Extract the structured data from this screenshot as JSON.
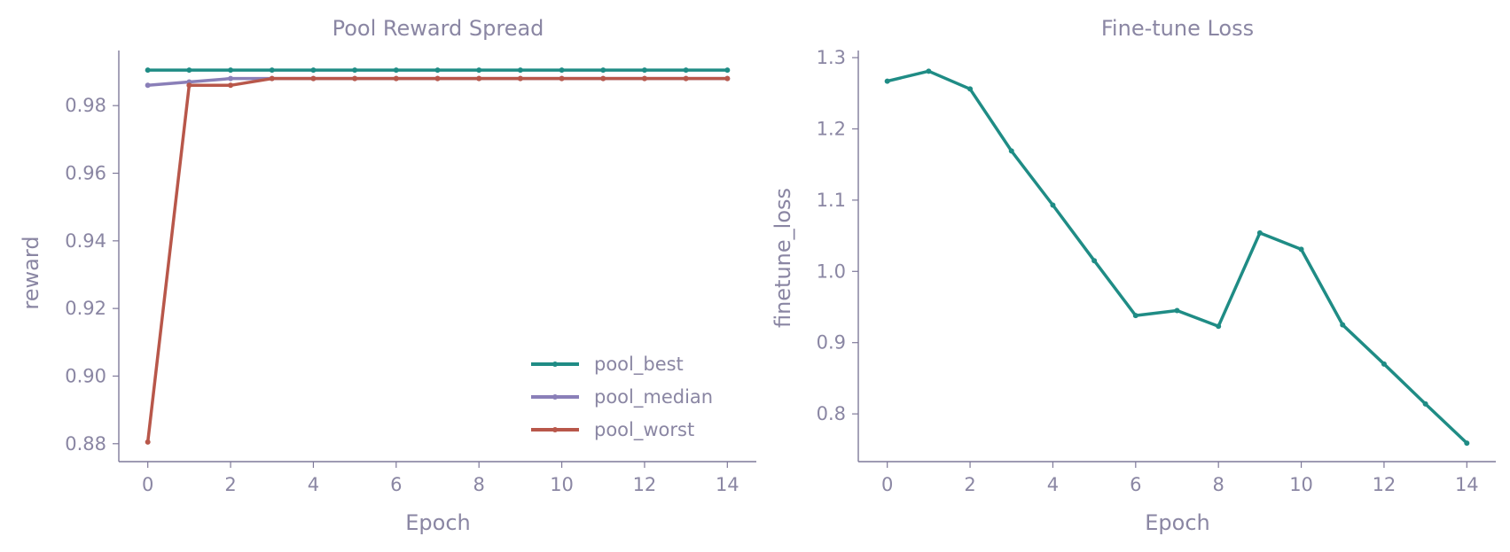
{
  "chart_data": [
    {
      "type": "line",
      "title": "Pool Reward Spread",
      "xlabel": "Epoch",
      "ylabel": "reward",
      "x": [
        0,
        1,
        2,
        3,
        4,
        5,
        6,
        7,
        8,
        9,
        10,
        11,
        12,
        13,
        14
      ],
      "xlim": [
        -0.7,
        14.7
      ],
      "ylim": [
        0.8747,
        0.9963
      ],
      "xticks": [
        0,
        2,
        4,
        6,
        8,
        10,
        12,
        14
      ],
      "yticks": [
        0.88,
        0.9,
        0.92,
        0.94,
        0.96,
        0.98
      ],
      "ytick_labels": [
        "0.88",
        "0.90",
        "0.92",
        "0.94",
        "0.96",
        "0.98"
      ],
      "grid": false,
      "legend_position": "lower-right",
      "series": [
        {
          "name": "pool_best",
          "color": "#1f8c85",
          "values": [
            0.9905,
            0.9905,
            0.9905,
            0.9905,
            0.9905,
            0.9905,
            0.9905,
            0.9905,
            0.9905,
            0.9905,
            0.9905,
            0.9905,
            0.9905,
            0.9905,
            0.9905
          ]
        },
        {
          "name": "pool_median",
          "color": "#8a7fb8",
          "values": [
            0.986,
            0.987,
            0.988,
            0.988,
            0.988,
            0.988,
            0.988,
            0.988,
            0.988,
            0.988,
            0.988,
            0.988,
            0.988,
            0.988,
            0.988
          ]
        },
        {
          "name": "pool_worst",
          "color": "#b8574a",
          "values": [
            0.8805,
            0.986,
            0.986,
            0.988,
            0.988,
            0.988,
            0.988,
            0.988,
            0.988,
            0.988,
            0.988,
            0.988,
            0.988,
            0.988,
            0.988
          ]
        }
      ]
    },
    {
      "type": "line",
      "title": "Fine-tune Loss",
      "xlabel": "Epoch",
      "ylabel": "finetune_loss",
      "x": [
        0,
        1,
        2,
        3,
        4,
        5,
        6,
        7,
        8,
        9,
        10,
        11,
        12,
        13,
        14
      ],
      "xlim": [
        -0.7,
        14.7
      ],
      "ylim": [
        0.733,
        1.31
      ],
      "xticks": [
        0,
        2,
        4,
        6,
        8,
        10,
        12,
        14
      ],
      "yticks": [
        0.8,
        0.9,
        1.0,
        1.1,
        1.2,
        1.3
      ],
      "ytick_labels": [
        "0.8",
        "0.9",
        "1.0",
        "1.1",
        "1.2",
        "1.3"
      ],
      "grid": false,
      "series": [
        {
          "name": "",
          "color": "#1f8c85",
          "values": [
            1.267,
            1.281,
            1.256,
            1.169,
            1.093,
            1.015,
            0.938,
            0.945,
            0.923,
            1.054,
            1.031,
            0.925,
            0.87,
            0.814,
            0.759
          ]
        }
      ]
    }
  ]
}
